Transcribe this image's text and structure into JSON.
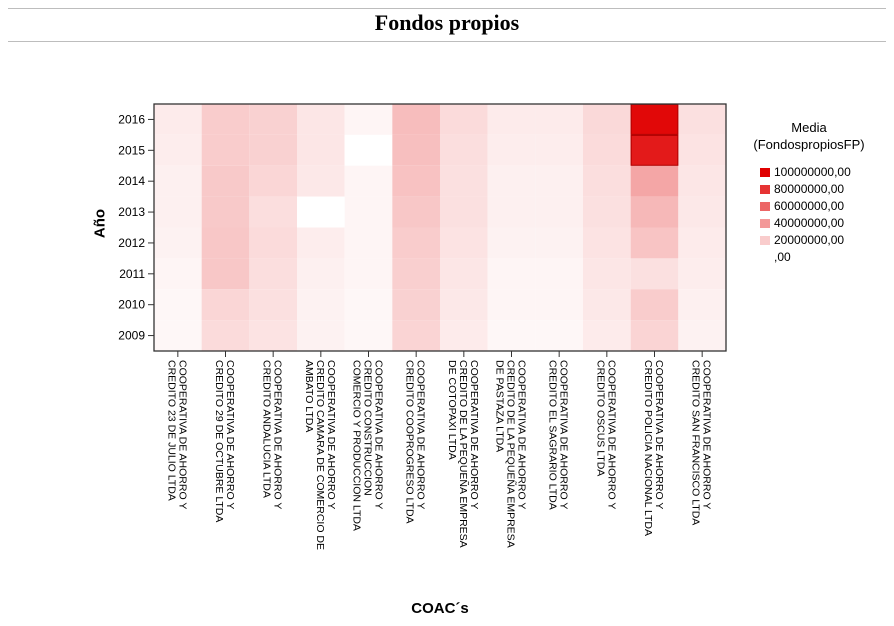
{
  "chart_data": {
    "type": "heatmap",
    "title": "Fondos propios",
    "xlabel": "COAC´s",
    "ylabel": "Año",
    "x_categories": [
      [
        "COOPERATIVA DE AHORRO Y",
        "CREDITO 23 DE JULIO LTDA"
      ],
      [
        "COOPERATIVA DE AHORRO Y",
        "CREDITO 29 DE OCTUBRE LTDA"
      ],
      [
        "COOPERATIVA DE AHORRO Y",
        "CREDITO ANDALUCIA LTDA"
      ],
      [
        "COOPERATIVA DE AHORRO Y",
        "CREDITO CAMARA DE COMERCIO DE",
        "AMBATO LTDA"
      ],
      [
        "COOPERATIVA DE AHORRO Y",
        "CREDITO CONSTRUCCION",
        "COMERCIO Y PRODUCCION LTDA"
      ],
      [
        "COOPERATIVA DE AHORRO Y",
        "CREDITO COOPROGRESO LTDA"
      ],
      [
        "COOPERATIVA DE AHORRO Y",
        "CREDITO DE LA PEQUEÑA EMPRESA",
        "DE COTOPAXI LTDA"
      ],
      [
        "COOPERATIVA DE AHORRO Y",
        "CREDITO DE LA PEQUEÑA EMPRESA",
        "DE PASTAZA LTDA"
      ],
      [
        "COOPERATIVA DE AHORRO Y",
        "CREDITO EL SAGRARIO LTDA"
      ],
      [
        "COOPERATIVA DE AHORRO Y",
        "CREDITO OSCUS LTDA"
      ],
      [
        "COOPERATIVA DE AHORRO Y",
        "CREDITO POLICIA NACIONAL LTDA"
      ],
      [
        "COOPERATIVA DE AHORRO Y",
        "CREDITO SAN FRANCISCO LTDA"
      ]
    ],
    "y_categories": [
      "2016",
      "2015",
      "2014",
      "2013",
      "2012",
      "2011",
      "2010",
      "2009"
    ],
    "values": [
      [
        8000000,
        20000000,
        18000000,
        10000000,
        4000000,
        26000000,
        14000000,
        8000000,
        8000000,
        15000000,
        97000000,
        12000000
      ],
      [
        7000000,
        20000000,
        18000000,
        10000000,
        0,
        25000000,
        13000000,
        7000000,
        7000000,
        14000000,
        90000000,
        11000000
      ],
      [
        6000000,
        21000000,
        16000000,
        9000000,
        4000000,
        24000000,
        12000000,
        6000000,
        6000000,
        13000000,
        35000000,
        10000000
      ],
      [
        6000000,
        21000000,
        13000000,
        0,
        4000000,
        22000000,
        12000000,
        6000000,
        6000000,
        12000000,
        28000000,
        9000000
      ],
      [
        5000000,
        22000000,
        14000000,
        7000000,
        4000000,
        20000000,
        11000000,
        5000000,
        5000000,
        11000000,
        23000000,
        8000000
      ],
      [
        4000000,
        22000000,
        13000000,
        6000000,
        4000000,
        19000000,
        10000000,
        4000000,
        4000000,
        10000000,
        12000000,
        7000000
      ],
      [
        3000000,
        16000000,
        12000000,
        5000000,
        3000000,
        18000000,
        9000000,
        4000000,
        4000000,
        9000000,
        20000000,
        6000000
      ],
      [
        3000000,
        14000000,
        11000000,
        5000000,
        3000000,
        17000000,
        8000000,
        3000000,
        3000000,
        8000000,
        17000000,
        5000000
      ]
    ],
    "color_range": [
      0,
      100000000
    ],
    "colors": {
      "low": "#ffffff",
      "high": "#e00000"
    },
    "legend": {
      "title": "Media\n(FondospropiosFP)",
      "placement": "right",
      "items": [
        {
          "label": "100000000,00",
          "value": 100000000
        },
        {
          "label": "80000000,00",
          "value": 80000000
        },
        {
          "label": "60000000,00",
          "value": 60000000
        },
        {
          "label": "40000000,00",
          "value": 40000000
        },
        {
          "label": "20000000,00",
          "value": 20000000
        },
        {
          "label": ",00",
          "value": 0
        }
      ]
    }
  }
}
